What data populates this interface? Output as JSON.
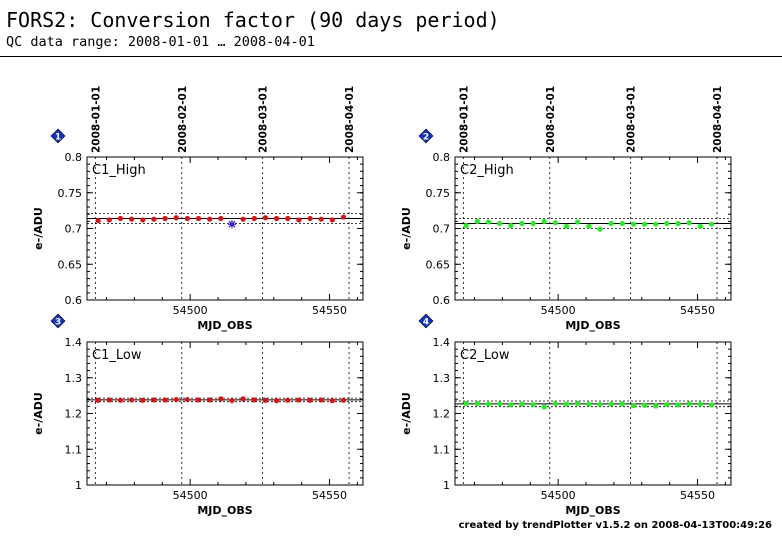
{
  "header": {
    "title": "FORS2: Conversion factor (90 days period)",
    "subtitle": "QC data range: 2008-01-01 … 2008-04-01"
  },
  "footer": {
    "credit": "created by trendPlotter v1.5.2 on 2008-04-13T00:49:26"
  },
  "colors": {
    "red_series": "#dd1111",
    "green_series": "#22ee22",
    "outlier": "#3311cc",
    "badge": "#1133cc"
  },
  "date_axis": {
    "dates": [
      "2008-01-01",
      "2008-02-01",
      "2008-03-01",
      "2008-04-01"
    ],
    "mjd": [
      54466,
      54497,
      54526,
      54557
    ]
  },
  "chart_data": [
    {
      "type": "scatter",
      "badge": "1",
      "panel_label": "C1_High",
      "xlabel": "MJD_OBS",
      "ylabel": "e-/ADU",
      "xlim": [
        54463,
        54562
      ],
      "ylim": [
        0.6,
        0.8
      ],
      "xticks": [
        54500,
        54550
      ],
      "yticks": [
        0.6,
        0.65,
        0.7,
        0.75,
        0.8
      ],
      "ytick_labels": [
        "0.6",
        "0.65",
        "0.7",
        "0.75",
        "0.8"
      ],
      "mean": 0.714,
      "band": [
        0.707,
        0.721
      ],
      "color": "#dd1111",
      "x": [
        54467,
        54471,
        54475,
        54479,
        54483,
        54487,
        54491,
        54495,
        54499,
        54503,
        54507,
        54511,
        54519,
        54523,
        54527,
        54531,
        54535,
        54539,
        54543,
        54547,
        54551,
        54555
      ],
      "y": [
        0.711,
        0.712,
        0.714,
        0.713,
        0.712,
        0.713,
        0.714,
        0.715,
        0.714,
        0.714,
        0.713,
        0.714,
        0.713,
        0.714,
        0.715,
        0.714,
        0.714,
        0.712,
        0.714,
        0.713,
        0.712,
        0.716
      ],
      "outliers": {
        "x": [
          54515
        ],
        "y": [
          0.706
        ]
      }
    },
    {
      "type": "scatter",
      "badge": "2",
      "panel_label": "C2_High",
      "xlabel": "MJD_OBS",
      "ylabel": "e-/ADU",
      "xlim": [
        54463,
        54562
      ],
      "ylim": [
        0.6,
        0.8
      ],
      "xticks": [
        54500,
        54550
      ],
      "yticks": [
        0.6,
        0.65,
        0.7,
        0.75,
        0.8
      ],
      "ytick_labels": [
        "0.6",
        "0.65",
        "0.7",
        "0.75",
        "0.8"
      ],
      "mean": 0.707,
      "band": [
        0.7,
        0.714
      ],
      "color": "#22ee22",
      "x": [
        54467,
        54471,
        54475,
        54479,
        54483,
        54487,
        54491,
        54495,
        54499,
        54503,
        54507,
        54511,
        54515,
        54519,
        54523,
        54527,
        54531,
        54535,
        54539,
        54543,
        54547,
        54551,
        54555
      ],
      "y": [
        0.704,
        0.71,
        0.709,
        0.707,
        0.704,
        0.707,
        0.707,
        0.71,
        0.708,
        0.703,
        0.709,
        0.703,
        0.699,
        0.707,
        0.707,
        0.706,
        0.706,
        0.706,
        0.707,
        0.707,
        0.708,
        0.703,
        0.706
      ],
      "outliers": {
        "x": [],
        "y": []
      }
    },
    {
      "type": "scatter",
      "badge": "3",
      "panel_label": "C1_Low",
      "xlabel": "MJD_OBS",
      "ylabel": "e-/ADU",
      "xlim": [
        54463,
        54562
      ],
      "ylim": [
        1.0,
        1.4
      ],
      "xticks": [
        54500,
        54550
      ],
      "yticks": [
        1.0,
        1.1,
        1.2,
        1.3,
        1.4
      ],
      "ytick_labels": [
        "1",
        "1.1",
        "1.2",
        "1.3",
        "1.4"
      ],
      "mean": 1.238,
      "band": [
        1.233,
        1.243
      ],
      "color": "#dd1111",
      "x": [
        54467,
        54471,
        54475,
        54479,
        54483,
        54487,
        54491,
        54495,
        54499,
        54503,
        54507,
        54511,
        54515,
        54519,
        54523,
        54527,
        54531,
        54535,
        54539,
        54543,
        54547,
        54551,
        54555
      ],
      "y": [
        1.237,
        1.238,
        1.237,
        1.238,
        1.237,
        1.238,
        1.238,
        1.239,
        1.239,
        1.238,
        1.238,
        1.241,
        1.236,
        1.241,
        1.238,
        1.237,
        1.236,
        1.237,
        1.238,
        1.237,
        1.238,
        1.236,
        1.237
      ],
      "outliers": {
        "x": [],
        "y": []
      }
    },
    {
      "type": "scatter",
      "badge": "4",
      "panel_label": "C2_Low",
      "xlabel": "MJD_OBS",
      "ylabel": "e-/ADU",
      "xlim": [
        54463,
        54562
      ],
      "ylim": [
        1.0,
        1.4
      ],
      "xticks": [
        54500,
        54550
      ],
      "yticks": [
        1.0,
        1.1,
        1.2,
        1.3,
        1.4
      ],
      "ytick_labels": [
        "1",
        "1.1",
        "1.2",
        "1.3",
        "1.4"
      ],
      "mean": 1.227,
      "band": [
        1.219,
        1.235
      ],
      "color": "#22ee22",
      "x": [
        54467,
        54471,
        54475,
        54479,
        54483,
        54487,
        54491,
        54495,
        54499,
        54503,
        54507,
        54511,
        54515,
        54519,
        54523,
        54527,
        54531,
        54535,
        54539,
        54543,
        54547,
        54551,
        54555
      ],
      "y": [
        1.228,
        1.228,
        1.226,
        1.227,
        1.224,
        1.226,
        1.225,
        1.218,
        1.228,
        1.226,
        1.228,
        1.226,
        1.225,
        1.226,
        1.227,
        1.222,
        1.223,
        1.221,
        1.225,
        1.224,
        1.227,
        1.226,
        1.224
      ],
      "outliers": {
        "x": [],
        "y": []
      }
    }
  ]
}
